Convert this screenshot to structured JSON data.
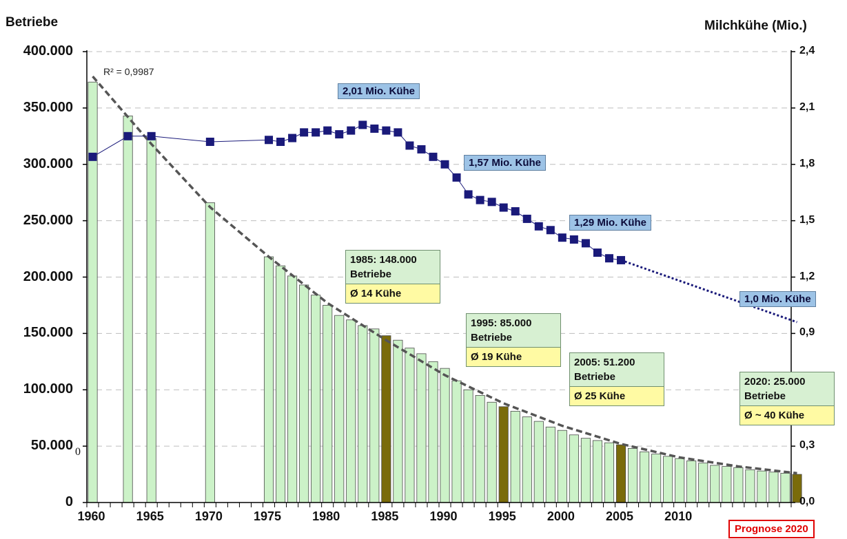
{
  "left_axis_title": "Betriebe",
  "right_axis_title": "Milchkühe (Mio.)",
  "r2_label": "R² = 0,9987",
  "stray_label": "0",
  "prognose_label": "Prognose 2020",
  "left_ticks": [
    "0",
    "50.000",
    "100.000",
    "150.000",
    "200.000",
    "250.000",
    "300.000",
    "350.000",
    "400.000"
  ],
  "right_ticks": [
    "0,0",
    "0,3",
    "0,6",
    "0,9",
    "1,2",
    "1,5",
    "1,8",
    "2,1",
    "2,4"
  ],
  "x_ticks": [
    "1960",
    "1965",
    "1970",
    "1975",
    "1980",
    "1985",
    "1990",
    "1995",
    "2000",
    "2005",
    "2010"
  ],
  "cow_labels": [
    {
      "text": "2,01 Mio. Kühe"
    },
    {
      "text": "1,57 Mio. Kühe"
    },
    {
      "text": "1,29 Mio. Kühe"
    },
    {
      "text": "1,0 Mio. Kühe"
    }
  ],
  "info_boxes": [
    {
      "line1": "1985: 148.000",
      "line2": "Betriebe",
      "line3": "Ø 14 Kühe"
    },
    {
      "line1": "1995: 85.000",
      "line2": "Betriebe",
      "line3": "Ø 19 Kühe"
    },
    {
      "line1": "2005: 51.200",
      "line2": "Betriebe",
      "line3": "Ø 25 Kühe"
    },
    {
      "line1": "2020: 25.000",
      "line2": "Betriebe",
      "line3": "Ø ~ 40 Kühe"
    }
  ],
  "colors": {
    "bar_fill": "#ccf2c8",
    "bar_highlight": "#7a6b0a",
    "bar_stroke": "#4a4a4a",
    "cow_marker": "#1a1a7a",
    "trend_line": "#555555",
    "cow_box": "#9dc3e6",
    "info_top": "#d7f0d2",
    "info_bottom": "#fffaa3",
    "prognose_border": "#e00000"
  },
  "chart_data": {
    "type": "bar",
    "title": "",
    "xlabel": "",
    "ylabel": "Betriebe",
    "y2label": "Milchkühe (Mio.)",
    "ylim": [
      0,
      400000
    ],
    "y2lim": [
      0,
      2.4
    ],
    "xlim": [
      1960,
      2020
    ],
    "grid": true,
    "farms": {
      "name": "Betriebe",
      "highlight_years": [
        1985,
        1995,
        2005,
        2020
      ],
      "x": [
        1960,
        1963,
        1965,
        1970,
        1975,
        1976,
        1977,
        1978,
        1979,
        1980,
        1981,
        1982,
        1983,
        1984,
        1985,
        1986,
        1987,
        1988,
        1989,
        1990,
        1991,
        1992,
        1993,
        1994,
        1995,
        1996,
        1997,
        1998,
        1999,
        2000,
        2001,
        2002,
        2003,
        2004,
        2005,
        2006,
        2007,
        2008,
        2009,
        2010,
        2011,
        2012,
        2013,
        2014,
        2015,
        2016,
        2017,
        2018,
        2019,
        2020
      ],
      "values": [
        373000,
        343000,
        323000,
        266000,
        218000,
        210000,
        201000,
        193000,
        184000,
        175000,
        166000,
        162000,
        157000,
        154000,
        148000,
        144000,
        137000,
        132000,
        125000,
        119000,
        108000,
        100000,
        95000,
        89000,
        85000,
        81000,
        76000,
        72000,
        67000,
        64000,
        60000,
        57000,
        55000,
        53000,
        51200,
        48000,
        45000,
        43000,
        41000,
        39000,
        37000,
        35000,
        33000,
        32000,
        31000,
        29000,
        28000,
        27000,
        26000,
        25000
      ]
    },
    "cows": {
      "name": "Milchkühe",
      "x": [
        1960,
        1963,
        1965,
        1970,
        1975,
        1976,
        1977,
        1978,
        1979,
        1980,
        1981,
        1982,
        1983,
        1984,
        1985,
        1986,
        1987,
        1988,
        1989,
        1990,
        1991,
        1992,
        1993,
        1994,
        1995,
        1996,
        1997,
        1998,
        1999,
        2000,
        2001,
        2002,
        2003,
        2004,
        2005
      ],
      "values": [
        1.84,
        1.95,
        1.95,
        1.92,
        1.93,
        1.92,
        1.94,
        1.97,
        1.97,
        1.98,
        1.96,
        1.98,
        2.01,
        1.99,
        1.98,
        1.97,
        1.9,
        1.88,
        1.84,
        1.8,
        1.73,
        1.64,
        1.61,
        1.6,
        1.57,
        1.55,
        1.51,
        1.47,
        1.45,
        1.41,
        1.4,
        1.38,
        1.33,
        1.3,
        1.29
      ]
    },
    "cows_forecast": {
      "x": [
        2005,
        2020
      ],
      "values": [
        1.29,
        0.96
      ]
    },
    "trend": {
      "x": [
        1960,
        1965,
        1970,
        1975,
        1980,
        1985,
        1990,
        1995,
        2000,
        2005,
        2010,
        2015,
        2020
      ],
      "values": [
        378000,
        318000,
        262000,
        218000,
        177000,
        144000,
        113000,
        88000,
        68000,
        52000,
        40000,
        32000,
        26000
      ]
    }
  }
}
